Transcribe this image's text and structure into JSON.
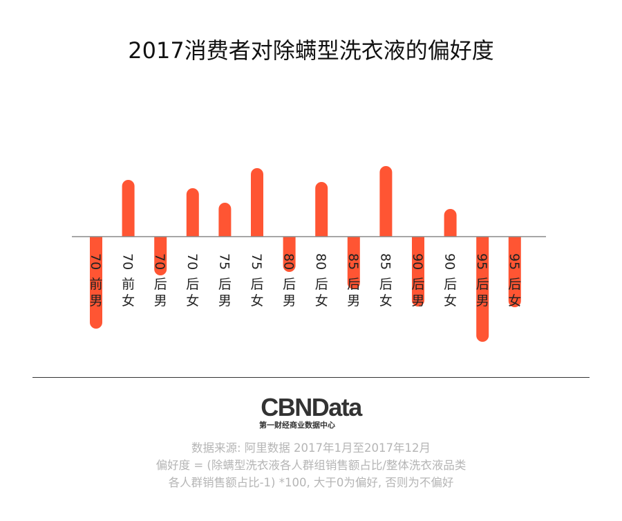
{
  "chart_data": {
    "type": "bar",
    "title": "2017消费者对除螨型洗衣液的偏好度",
    "categories": [
      "70前男",
      "70前女",
      "70后男",
      "70后女",
      "75后男",
      "75后女",
      "80后男",
      "80后女",
      "85后男",
      "85后女",
      "90后男",
      "90后女",
      "95后男",
      "95后女"
    ],
    "values": [
      -133,
      82,
      -56,
      70,
      49,
      99,
      -51,
      79,
      -76,
      102,
      -101,
      40,
      -152,
      -102
    ],
    "xlabel": "",
    "ylabel": "",
    "grid": false,
    "bar_color": "#ff5533",
    "baseline_color": "#888888"
  },
  "logo": {
    "name": "CBNData",
    "tagline": "第一财经商业数据中心"
  },
  "notes": [
    "数据来源: 阿里数据 2017年1月至2017年12月",
    "偏好度 = (除螨型洗衣液各人群组销售额占比/整体洗衣液品类",
    "各人群销售额占比-1) *100, 大于0为偏好, 否则为不偏好"
  ]
}
